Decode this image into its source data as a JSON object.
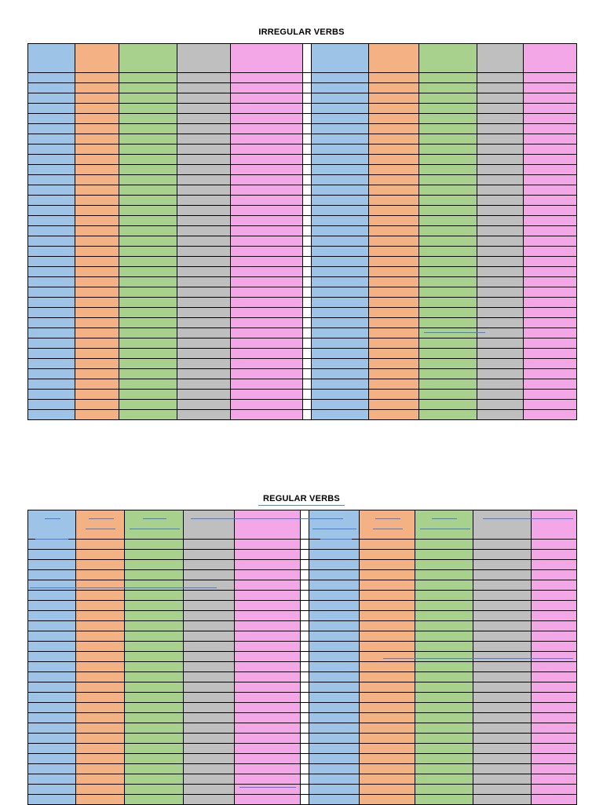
{
  "document": {
    "irregular_title": "IRREGULAR VERBS",
    "regular_title": "REGULAR VERBS"
  },
  "colors": {
    "blue": "#9dc3e6",
    "orange": "#f4b183",
    "green": "#a9d18e",
    "gray": "#bfbfbf",
    "pink": "#f4a7e6",
    "separator": "#ffffff",
    "underline": "#4a7bd6"
  },
  "irregular_table": {
    "column_colors": [
      "blue",
      "orange",
      "green",
      "gray",
      "pink",
      "white",
      "blue",
      "orange",
      "green",
      "gray",
      "pink"
    ],
    "body_row_count": 34
  },
  "regular_table": {
    "column_colors": [
      "blue",
      "orange",
      "green",
      "gray",
      "pink",
      "white",
      "blue",
      "orange",
      "green",
      "gray",
      "pink"
    ],
    "body_row_count": 26
  }
}
